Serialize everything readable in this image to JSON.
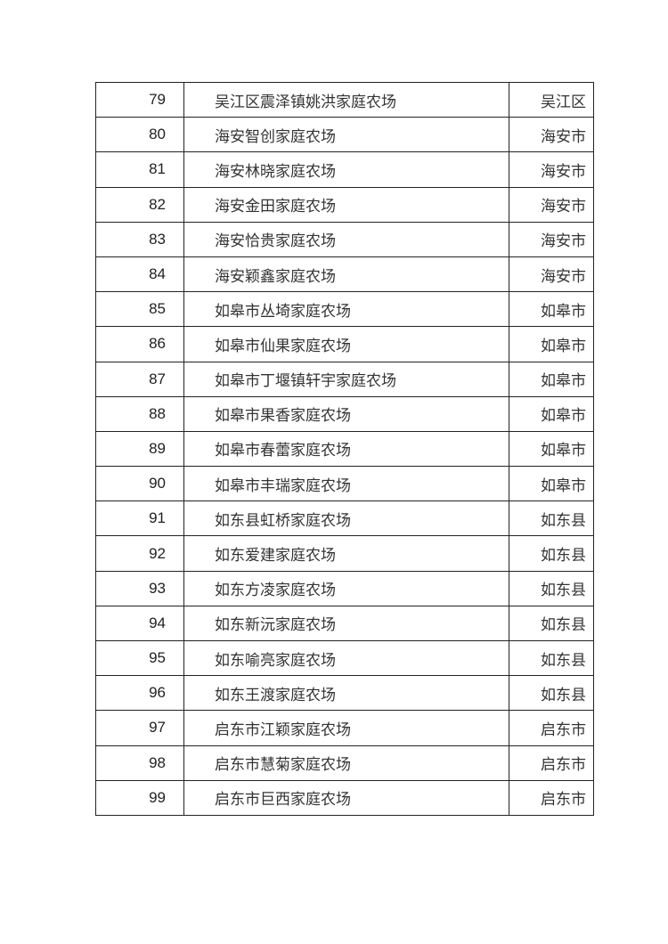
{
  "table": {
    "rows": [
      {
        "no": "79",
        "name": "吴江区震泽镇姚洪家庭农场",
        "area": "吴江区"
      },
      {
        "no": "80",
        "name": "海安智创家庭农场",
        "area": "海安市"
      },
      {
        "no": "81",
        "name": "海安林晓家庭农场",
        "area": "海安市"
      },
      {
        "no": "82",
        "name": "海安金田家庭农场",
        "area": "海安市"
      },
      {
        "no": "83",
        "name": "海安恰贵家庭农场",
        "area": "海安市"
      },
      {
        "no": "84",
        "name": "海安颖鑫家庭农场",
        "area": "海安市"
      },
      {
        "no": "85",
        "name": "如皋市丛埼家庭农场",
        "area": "如皋市"
      },
      {
        "no": "86",
        "name": "如皋市仙果家庭农场",
        "area": "如皋市"
      },
      {
        "no": "87",
        "name": "如皋市丁堰镇轩宇家庭农场",
        "area": "如皋市"
      },
      {
        "no": "88",
        "name": "如皋市果香家庭农场",
        "area": "如皋市"
      },
      {
        "no": "89",
        "name": "如皋市春蕾家庭农场",
        "area": "如皋市"
      },
      {
        "no": "90",
        "name": "如皋市丰瑞家庭农场",
        "area": "如皋市"
      },
      {
        "no": "91",
        "name": "如东县虹桥家庭农场",
        "area": "如东县"
      },
      {
        "no": "92",
        "name": "如东爱建家庭农场",
        "area": "如东县"
      },
      {
        "no": "93",
        "name": "如东方凌家庭农场",
        "area": "如东县"
      },
      {
        "no": "94",
        "name": "如东新沅家庭农场",
        "area": "如东县"
      },
      {
        "no": "95",
        "name": "如东喻亮家庭农场",
        "area": "如东县"
      },
      {
        "no": "96",
        "name": "如东王渡家庭农场",
        "area": "如东县"
      },
      {
        "no": "97",
        "name": "启东市江颖家庭农场",
        "area": "启东市"
      },
      {
        "no": "98",
        "name": "启东市慧菊家庭农场",
        "area": "启东市"
      },
      {
        "no": "99",
        "name": "启东市巨西家庭农场",
        "area": "启东市"
      }
    ]
  }
}
